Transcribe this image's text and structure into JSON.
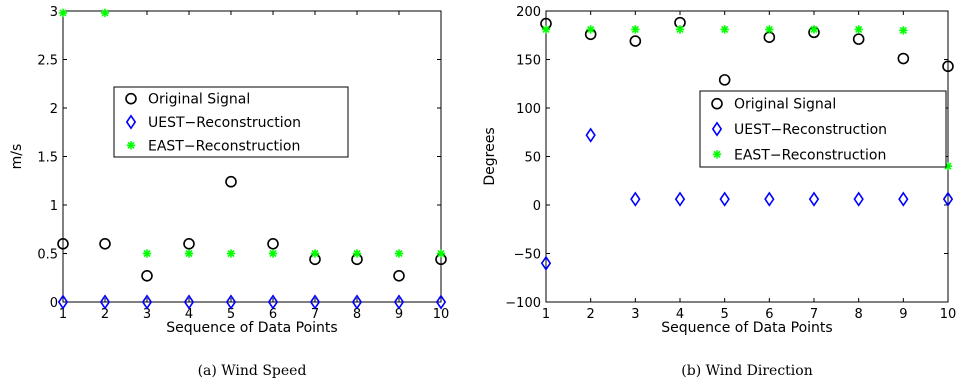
{
  "chart_data": [
    {
      "type": "scatter",
      "xlabel": "Sequence of Data Points",
      "ylabel": "m/s",
      "caption": "(a)  Wind Speed",
      "xlim": [
        1,
        10
      ],
      "ylim": [
        0,
        3
      ],
      "xticks": [
        1,
        2,
        3,
        4,
        5,
        6,
        7,
        8,
        9,
        10
      ],
      "yticks": [
        0,
        0.5,
        1,
        1.5,
        2,
        2.5,
        3
      ],
      "ytick_labels": [
        "0",
        "0.5",
        "1",
        "1.5",
        "2",
        "2.5",
        "3"
      ],
      "grid": false,
      "legend_position": "center",
      "x": [
        1,
        2,
        3,
        4,
        5,
        6,
        7,
        8,
        9,
        10
      ],
      "series": [
        {
          "name": "Original Signal",
          "marker": "circle",
          "color": "#000000",
          "values": [
            0.6,
            0.6,
            0.27,
            0.6,
            1.24,
            0.6,
            0.44,
            0.44,
            0.27,
            0.44
          ]
        },
        {
          "name": "UEST−Reconstruction",
          "marker": "diamond",
          "color": "#0000ff",
          "values": [
            0,
            0,
            0,
            0,
            0,
            0,
            0,
            0,
            0,
            0
          ]
        },
        {
          "name": "EAST−Reconstruction",
          "marker": "asterisk",
          "color": "#00ff00",
          "values": [
            2.98,
            2.98,
            0.5,
            0.5,
            0.5,
            0.5,
            0.5,
            0.5,
            0.5,
            0.5
          ]
        }
      ]
    },
    {
      "type": "scatter",
      "xlabel": "Sequence of Data Points",
      "ylabel": "Degrees",
      "caption": "(b)  Wind Direction",
      "xlim": [
        1,
        10
      ],
      "ylim": [
        -100,
        200
      ],
      "xticks": [
        1,
        2,
        3,
        4,
        5,
        6,
        7,
        8,
        9,
        10
      ],
      "yticks": [
        -100,
        -50,
        0,
        50,
        100,
        150,
        200
      ],
      "ytick_labels": [
        "−100",
        "−50",
        "0",
        "50",
        "100",
        "150",
        "200"
      ],
      "grid": false,
      "legend_position": "right",
      "x": [
        1,
        2,
        3,
        4,
        5,
        6,
        7,
        8,
        9,
        10
      ],
      "series": [
        {
          "name": "Original Signal",
          "marker": "circle",
          "color": "#000000",
          "values": [
            187,
            176,
            169,
            188,
            129,
            173,
            178,
            171,
            151,
            143
          ]
        },
        {
          "name": "UEST−Reconstruction",
          "marker": "diamond",
          "color": "#0000ff",
          "values": [
            -60,
            72,
            6,
            6,
            6,
            6,
            6,
            6,
            6,
            6
          ]
        },
        {
          "name": "EAST−Reconstruction",
          "marker": "asterisk",
          "color": "#00ff00",
          "values": [
            181,
            181,
            181,
            181,
            181,
            181,
            181,
            181,
            180,
            40
          ]
        }
      ]
    }
  ]
}
